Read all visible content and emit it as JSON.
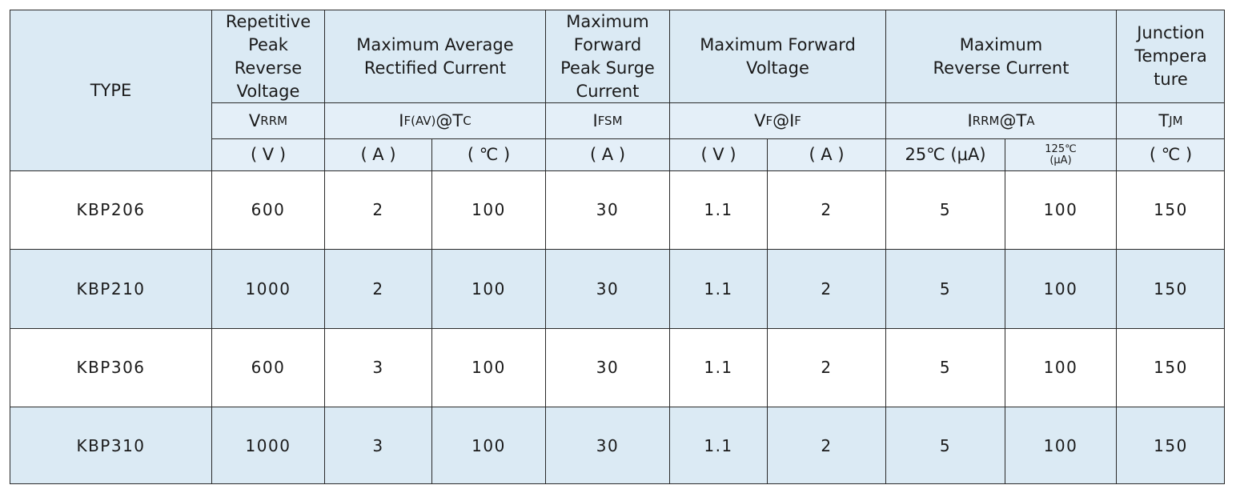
{
  "table": {
    "type_header": "TYPE",
    "groups": [
      {
        "label": "Repetitive\nPeak\nReverse\nVoltage",
        "symbol": [
          "V",
          "RRM"
        ]
      },
      {
        "label": "Maximum Average\nRectified Current",
        "symbol": [
          "I",
          "F(AV)",
          "@T",
          "C"
        ]
      },
      {
        "label": "Maximum\nForward\nPeak Surge\nCurrent",
        "symbol": [
          "I",
          "FSM"
        ]
      },
      {
        "label": "Maximum Forward\nVoltage",
        "symbol": [
          "V",
          "F",
          " @I",
          "F"
        ]
      },
      {
        "label": "Maximum\nReverse Current",
        "symbol": [
          "I",
          "RRM",
          " @T",
          "A"
        ]
      },
      {
        "label": "Junction\nTempera\nture",
        "symbol": [
          "T",
          "JM"
        ]
      }
    ],
    "units": [
      "( V )",
      "( A )",
      "( ℃ )",
      "( A )",
      "( V )",
      "( A )",
      "25℃ (μA)",
      "125℃\n(μA)",
      "( ℃ )"
    ],
    "rows": [
      [
        "KBP206",
        "600",
        "2",
        "100",
        "30",
        "1.1",
        "2",
        "5",
        "100",
        "150"
      ],
      [
        "KBP210",
        "1000",
        "2",
        "100",
        "30",
        "1.1",
        "2",
        "5",
        "100",
        "150"
      ],
      [
        "KBP306",
        "600",
        "3",
        "100",
        "30",
        "1.1",
        "2",
        "5",
        "100",
        "150"
      ],
      [
        "KBP310",
        "1000",
        "3",
        "100",
        "30",
        "1.1",
        "2",
        "5",
        "100",
        "150"
      ]
    ]
  }
}
